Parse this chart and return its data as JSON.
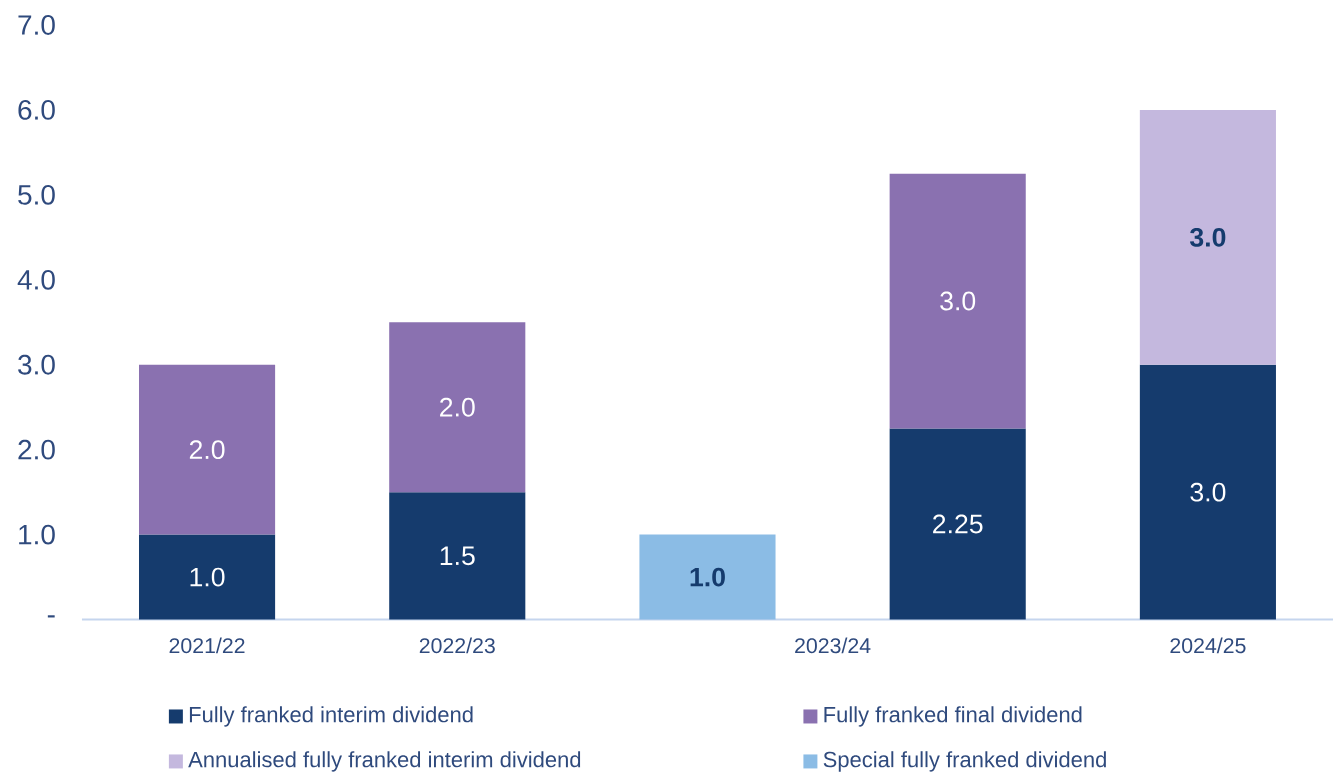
{
  "chart_data": {
    "type": "bar",
    "stacked": true,
    "categories": [
      "2021/22",
      "2022/23",
      null,
      "2023/24",
      "2024/25"
    ],
    "ylim": [
      0,
      7
    ],
    "yticks": [
      {
        "value": 0,
        "label": "-"
      },
      {
        "value": 1,
        "label": "1.0"
      },
      {
        "value": 2,
        "label": "2.0"
      },
      {
        "value": 3,
        "label": "3.0"
      },
      {
        "value": 4,
        "label": "4.0"
      },
      {
        "value": 5,
        "label": "5.0"
      },
      {
        "value": 6,
        "label": "6.0"
      },
      {
        "value": 7,
        "label": "7.0"
      }
    ],
    "legend": "bottom",
    "series": [
      {
        "name": "Fully franked interim dividend",
        "color": "#153b6d",
        "values": [
          1.0,
          1.5,
          null,
          2.25,
          3.0
        ],
        "value_labels": [
          "1.0",
          "1.5",
          null,
          "2.25",
          "3.0"
        ]
      },
      {
        "name": "Fully franked final dividend",
        "color": "#8a71b0",
        "values": [
          2.0,
          2.0,
          null,
          3.0,
          null
        ],
        "value_labels": [
          "2.0",
          "2.0",
          null,
          "3.0",
          null
        ]
      },
      {
        "name": "Annualised fully franked interim dividend",
        "color": "#c4b8de",
        "values": [
          null,
          null,
          null,
          null,
          3.0
        ],
        "value_labels": [
          null,
          null,
          null,
          null,
          "3.0"
        ]
      },
      {
        "name": "Special fully franked dividend",
        "color": "#8bbce5",
        "values": [
          null,
          null,
          1.0,
          null,
          null
        ],
        "value_labels": [
          null,
          null,
          "1.0",
          null,
          null
        ]
      }
    ]
  }
}
